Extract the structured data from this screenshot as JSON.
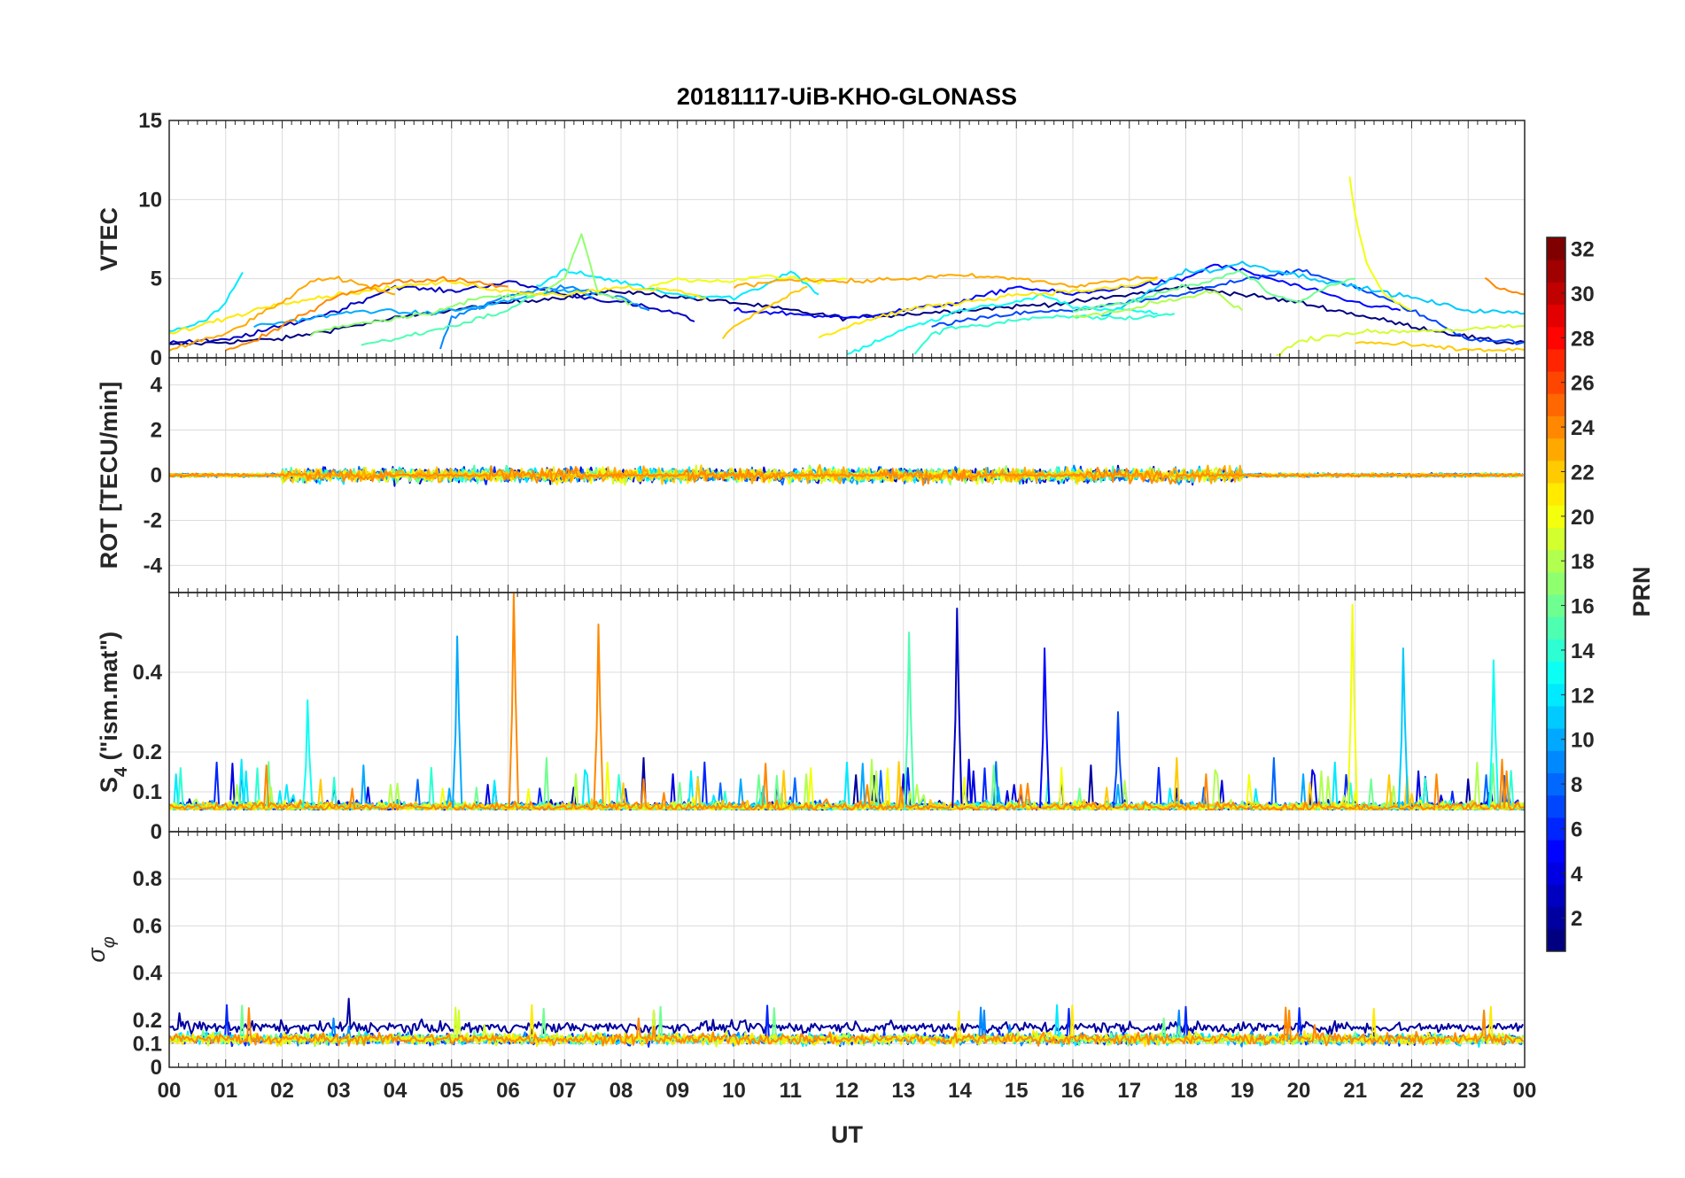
{
  "chart_data": {
    "type": "line",
    "title": "20181117-UiB-KHO-GLONASS",
    "xlabel": "UT",
    "x_ticks": [
      "00",
      "01",
      "02",
      "03",
      "04",
      "05",
      "06",
      "07",
      "08",
      "09",
      "10",
      "11",
      "12",
      "13",
      "14",
      "15",
      "16",
      "17",
      "18",
      "19",
      "20",
      "21",
      "22",
      "23",
      "00"
    ],
    "xlim_hours": [
      0,
      24
    ],
    "colorbar": {
      "label": "PRN",
      "clim": [
        1,
        32
      ],
      "ticks": [
        "2",
        "4",
        "6",
        "8",
        "10",
        "12",
        "14",
        "16",
        "18",
        "20",
        "22",
        "24",
        "26",
        "28",
        "30",
        "32"
      ],
      "colormap": "jet"
    },
    "panels": [
      {
        "id": "vtec",
        "ylabel": "VTEC",
        "ylim": [
          0,
          15
        ],
        "yticks": [
          "0",
          "5",
          "10",
          "15"
        ],
        "series": [
          {
            "prn": 1,
            "x": [
              0,
              2,
              4,
              6,
              8,
              10,
              12,
              14,
              16,
              18,
              20,
              22,
              23.5,
              24
            ],
            "y": [
              0.8,
              1.2,
              2.5,
              3.5,
              4.2,
              3.5,
              2.5,
              3.0,
              3.5,
              4.5,
              3.5,
              2.0,
              1.0,
              1.0
            ]
          },
          {
            "prn": 3,
            "x": [
              0,
              1,
              2,
              3,
              4,
              5,
              6,
              7,
              8,
              9,
              9.3
            ],
            "y": [
              1.0,
              1.1,
              2.0,
              3.0,
              4.5,
              4.2,
              4.8,
              4.0,
              3.5,
              2.8,
              2.3
            ]
          },
          {
            "prn": 5,
            "x": [
              10,
              11,
              12,
              13,
              14,
              15,
              16,
              17,
              18,
              18.5,
              19,
              20,
              21,
              21.8
            ],
            "y": [
              3.0,
              2.8,
              2.5,
              3.0,
              3.5,
              4.5,
              4.0,
              4.5,
              5.0,
              5.9,
              5.5,
              4.5,
              3.5,
              3.0
            ]
          },
          {
            "prn": 7,
            "x": [
              13.5,
              14,
              15,
              16,
              17,
              18,
              19,
              20,
              21,
              22,
              23,
              24
            ],
            "y": [
              2.0,
              2.3,
              2.8,
              3.0,
              3.5,
              4.0,
              5.0,
              5.5,
              4.5,
              3.0,
              1.2,
              1.0
            ]
          },
          {
            "prn": 9,
            "x": [
              4.8,
              5,
              6,
              7,
              8,
              8.5
            ],
            "y": [
              0.5,
              2.5,
              4.0,
              4.5,
              3.8,
              3.0
            ]
          },
          {
            "prn": 10,
            "x": [
              1.5,
              2.5,
              3.5,
              4.5,
              5.5,
              6.5,
              7.2,
              7.5
            ],
            "y": [
              2.0,
              2.5,
              3.0,
              2.8,
              3.2,
              4.0,
              4.3,
              3.8
            ]
          },
          {
            "prn": 11,
            "x": [
              16.5,
              17,
              17.5,
              18,
              18.5,
              19,
              20,
              21,
              22,
              23,
              24
            ],
            "y": [
              2.5,
              3.5,
              4.5,
              5.5,
              5.5,
              6.0,
              5.2,
              4.5,
              3.8,
              3.0,
              2.8
            ]
          },
          {
            "prn": 12,
            "x": [
              0,
              0.6,
              1,
              1.3
            ],
            "y": [
              1.7,
              2.3,
              3.5,
              5.4
            ]
          },
          {
            "prn": 12,
            "x": [
              6.5,
              7,
              8,
              9,
              10,
              10.5,
              11,
              11.5
            ],
            "y": [
              4.5,
              5.5,
              4.8,
              4.0,
              3.8,
              4.5,
              5.5,
              4.0
            ]
          },
          {
            "prn": 13,
            "x": [
              12,
              13,
              13.5,
              14,
              15,
              15.5,
              16,
              17,
              17.5
            ],
            "y": [
              0.2,
              1.8,
              2.3,
              3.0,
              3.5,
              4.0,
              3.2,
              3.0,
              2.8
            ]
          },
          {
            "prn": 14,
            "x": [
              13.2,
              13.5,
              14,
              14.5,
              15,
              16,
              17,
              17.8
            ],
            "y": [
              0.3,
              1.5,
              2.0,
              2.1,
              2.4,
              2.6,
              2.5,
              2.8
            ]
          },
          {
            "prn": 15,
            "x": [
              3.4,
              4,
              5,
              6,
              6.5
            ],
            "y": [
              0.8,
              1.2,
              2.0,
              3.0,
              4.0
            ]
          },
          {
            "prn": 16,
            "x": [
              16,
              17,
              18,
              19,
              19.5,
              20,
              20.5,
              21
            ],
            "y": [
              3.0,
              3.5,
              4.5,
              5.5,
              4.0,
              3.5,
              4.5,
              5.0
            ]
          },
          {
            "prn": 17,
            "x": [
              2.5,
              3,
              4,
              4.8,
              5.5,
              6.5,
              7,
              7.3,
              7.6,
              8.2
            ],
            "y": [
              1.5,
              2.0,
              2.5,
              3.0,
              3.8,
              4.0,
              5.0,
              7.8,
              4.0,
              3.5
            ]
          },
          {
            "prn": 18,
            "x": [
              16,
              16.5,
              17,
              17.5,
              18,
              18.5,
              19
            ],
            "y": [
              2.5,
              2.8,
              3.0,
              3.5,
              3.8,
              4.2,
              3.0
            ]
          },
          {
            "prn": 19,
            "x": [
              19.6,
              20,
              20.5,
              21,
              22,
              23,
              24
            ],
            "y": [
              0.2,
              1.0,
              1.4,
              1.6,
              1.7,
              1.8,
              2.0
            ]
          },
          {
            "prn": 20,
            "x": [
              20.9,
              21,
              21.2,
              21.5,
              22
            ],
            "y": [
              11.4,
              9.0,
              6.0,
              4.0,
              3.0
            ]
          },
          {
            "prn": 20,
            "x": [
              8.5,
              9,
              10,
              10.5,
              11,
              11.5,
              12
            ],
            "y": [
              4.5,
              5.0,
              4.8,
              5.2,
              5.0,
              4.8,
              5.0
            ]
          },
          {
            "prn": 21,
            "x": [
              0,
              1,
              2,
              3,
              4,
              5,
              6,
              7,
              8,
              9,
              9.5
            ],
            "y": [
              1.5,
              2.5,
              3.5,
              4.0,
              4.5,
              4.8,
              4.2,
              4.0,
              4.5,
              4.2,
              3.8
            ]
          },
          {
            "prn": 21,
            "x": [
              11.5,
              12,
              13,
              14,
              15,
              16,
              17,
              17.5
            ],
            "y": [
              1.2,
              2.0,
              3.0,
              3.5,
              4.0,
              4.2,
              4.5,
              5.0
            ]
          },
          {
            "prn": 22,
            "x": [
              9.8,
              10,
              10.5,
              11,
              11.3
            ],
            "y": [
              1.2,
              2.0,
              3.0,
              4.0,
              4.5
            ]
          },
          {
            "prn": 22,
            "x": [
              21,
              22,
              23,
              24
            ],
            "y": [
              1.0,
              0.8,
              0.5,
              0.5
            ]
          },
          {
            "prn": 23,
            "x": [
              0,
              0.5,
              1,
              1.5,
              2,
              2.5,
              3,
              3.5,
              4
            ],
            "y": [
              0.5,
              1.0,
              1.5,
              2.5,
              3.5,
              4.8,
              5.0,
              4.5,
              4.0
            ]
          },
          {
            "prn": 23,
            "x": [
              10,
              11,
              12,
              13,
              14,
              15,
              15.5,
              16,
              17,
              17.5
            ],
            "y": [
              4.5,
              5.0,
              4.8,
              5.0,
              5.2,
              5.0,
              4.8,
              4.5,
              5.0,
              5.1
            ]
          },
          {
            "prn": 24,
            "x": [
              1,
              1.5,
              2,
              2.5,
              3,
              4,
              5,
              6
            ],
            "y": [
              0.5,
              1.0,
              2.0,
              3.0,
              4.0,
              4.8,
              5.0,
              4.5
            ]
          },
          {
            "prn": 24,
            "x": [
              23.3,
              23.5,
              24
            ],
            "y": [
              5.0,
              4.5,
              4.0
            ]
          }
        ]
      },
      {
        "id": "rot",
        "ylabel": "ROT [TECU/min]",
        "ylim": [
          -5.2,
          5.2
        ],
        "yticks": [
          "-4",
          "-2",
          "0",
          "2",
          "4"
        ]
      },
      {
        "id": "s4",
        "ylabel": "S4 (\"ism.mat\")",
        "ylabel_main": "S",
        "ylabel_sub": "4",
        "ylabel_rest": " (\"ism.mat\")",
        "ylim": [
          0,
          0.6
        ],
        "yticks": [
          "0",
          "0.1",
          "0.2",
          "0.4"
        ],
        "peaks": [
          {
            "prn": 10,
            "hour": 5.1,
            "value": 0.49
          },
          {
            "prn": 24,
            "hour": 6.1,
            "value": 0.6
          },
          {
            "prn": 24,
            "hour": 7.6,
            "value": 0.52
          },
          {
            "prn": 15,
            "hour": 13.1,
            "value": 0.5
          },
          {
            "prn": 3,
            "hour": 13.95,
            "value": 0.56
          },
          {
            "prn": 5,
            "hour": 15.5,
            "value": 0.46
          },
          {
            "prn": 20,
            "hour": 20.95,
            "value": 0.57
          },
          {
            "prn": 11,
            "hour": 21.85,
            "value": 0.46
          },
          {
            "prn": 13,
            "hour": 23.45,
            "value": 0.43
          },
          {
            "prn": 13,
            "hour": 2.45,
            "value": 0.33
          },
          {
            "prn": 7,
            "hour": 16.8,
            "value": 0.3
          }
        ]
      },
      {
        "id": "sigma",
        "ylabel": "σφ",
        "ylabel_main": "σ",
        "ylabel_sub": "φ",
        "ylim": [
          0,
          1
        ],
        "yticks": [
          "0",
          "0.1",
          "0.2",
          "0.4",
          "0.6",
          "0.8"
        ]
      }
    ]
  }
}
